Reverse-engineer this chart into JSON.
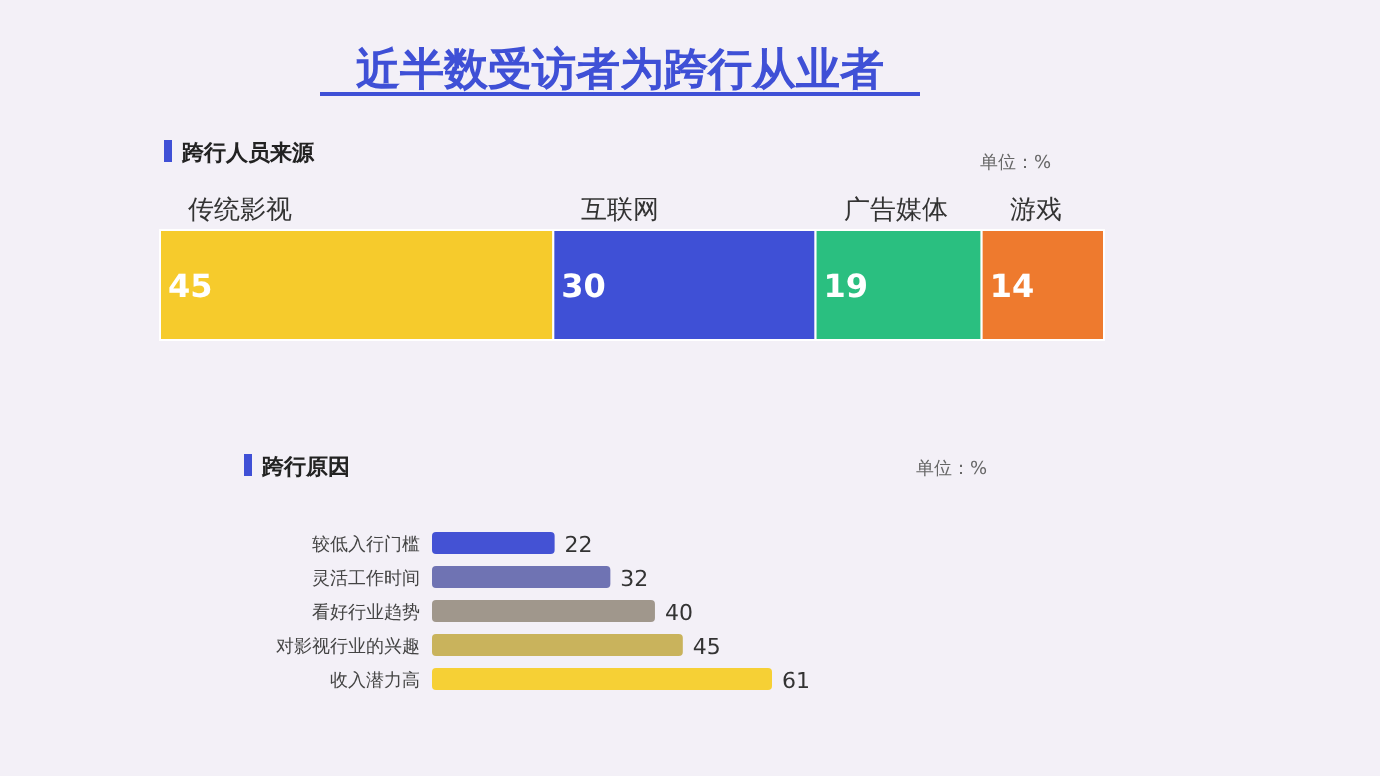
{
  "chart_data": [
    {
      "type": "bar",
      "orientation": "horizontal",
      "stacked": true,
      "data_labels": true,
      "title": "近半数受访者为跨行从业者",
      "subtitle": "跨行人员来源",
      "annotations": [
        "单位：%"
      ],
      "categories": [
        null
      ],
      "series": [
        {
          "name": "传统影视",
          "color": "#f6cb2c",
          "values": [
            45
          ]
        },
        {
          "name": "互联网",
          "color": "#3f50d6",
          "values": [
            30
          ]
        },
        {
          "name": "广告媒体",
          "color": "#2abf80",
          "values": [
            19
          ]
        },
        {
          "name": "游戏",
          "color": "#ee7a2e",
          "values": [
            14
          ]
        }
      ]
    },
    {
      "type": "bar",
      "orientation": "horizontal",
      "data_labels": true,
      "title": "跨行原因",
      "annotations": [
        "单位：%"
      ],
      "categories": [
        "较低入行门槛",
        "灵活工作时间",
        "看好行业趋势",
        "对影视行业的兴趣",
        "收入潜力高"
      ],
      "values": [
        22,
        32,
        40,
        45,
        61
      ],
      "colors": [
        "#4452d4",
        "#6f73b3",
        "#a0978c",
        "#c9b35c",
        "#f6d035"
      ]
    }
  ]
}
